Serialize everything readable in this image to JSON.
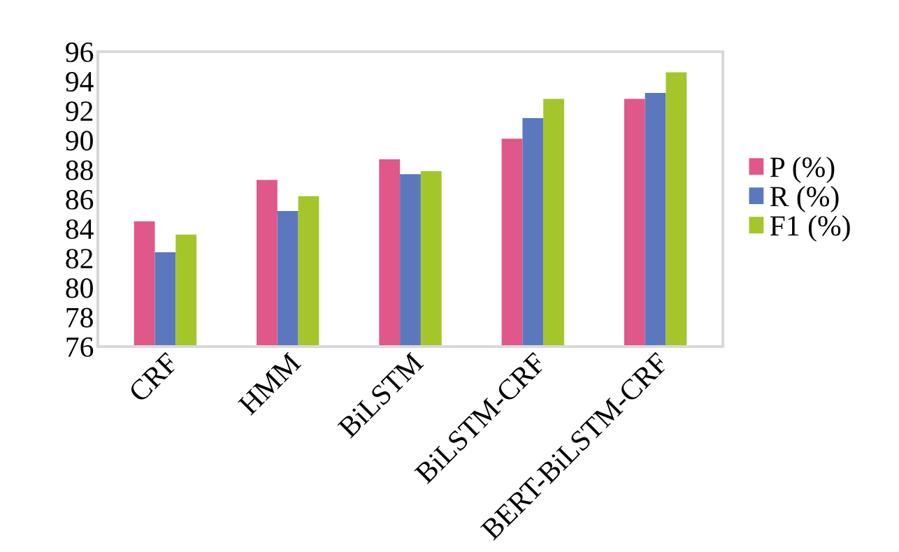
{
  "chart_data": {
    "type": "bar",
    "categories": [
      "CRF",
      "HMM",
      "BiLSTM",
      "BiLSTM-CRF",
      "BERT-BiLSTM-CRF"
    ],
    "series": [
      {
        "name": "P (%)",
        "color": "#e0578a",
        "values": [
          84.5,
          87.3,
          88.7,
          90.1,
          92.8
        ]
      },
      {
        "name": "R (%)",
        "color": "#5b78be",
        "values": [
          82.4,
          85.2,
          87.7,
          91.5,
          93.2
        ]
      },
      {
        "name": "F1 (%)",
        "color": "#a4c62a",
        "values": [
          83.6,
          86.2,
          87.9,
          92.8,
          94.6
        ]
      }
    ],
    "ylim": [
      76,
      96
    ],
    "yticks": [
      76,
      78,
      80,
      82,
      84,
      86,
      88,
      90,
      92,
      94,
      96
    ],
    "grid": false,
    "legend": "right"
  }
}
